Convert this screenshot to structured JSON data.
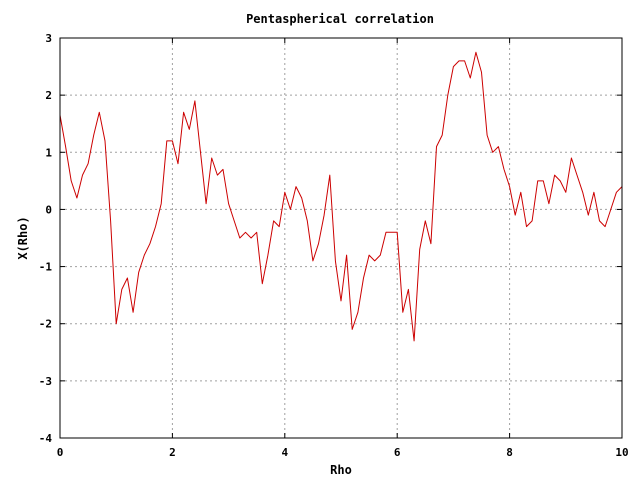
{
  "chart_data": {
    "type": "line",
    "title": "Pentaspherical correlation",
    "xlabel": "Rho",
    "ylabel": "X(Rho)",
    "xlim": [
      0,
      10
    ],
    "ylim": [
      -4,
      3
    ],
    "xticks": [
      0,
      2,
      4,
      6,
      8,
      10
    ],
    "yticks": [
      -4,
      -3,
      -2,
      -1,
      0,
      1,
      2,
      3
    ],
    "grid": true,
    "series": [
      {
        "color": "#cc0000",
        "x": [
          0,
          0.1,
          0.2,
          0.3,
          0.4,
          0.5,
          0.6,
          0.7,
          0.8,
          0.9,
          1.0,
          1.1,
          1.2,
          1.3,
          1.4,
          1.5,
          1.6,
          1.7,
          1.8,
          1.9,
          2.0,
          2.1,
          2.2,
          2.3,
          2.4,
          2.5,
          2.6,
          2.7,
          2.8,
          2.9,
          3.0,
          3.1,
          3.2,
          3.3,
          3.4,
          3.5,
          3.6,
          3.7,
          3.8,
          3.9,
          4.0,
          4.1,
          4.2,
          4.3,
          4.4,
          4.5,
          4.6,
          4.7,
          4.8,
          4.9,
          5.0,
          5.1,
          5.2,
          5.3,
          5.4,
          5.5,
          5.6,
          5.7,
          5.8,
          5.9,
          6.0,
          6.1,
          6.2,
          6.3,
          6.4,
          6.5,
          6.6,
          6.7,
          6.8,
          6.9,
          7.0,
          7.1,
          7.2,
          7.3,
          7.4,
          7.5,
          7.6,
          7.7,
          7.8,
          7.9,
          8.0,
          8.1,
          8.2,
          8.3,
          8.4,
          8.5,
          8.6,
          8.7,
          8.8,
          8.9,
          9.0,
          9.1,
          9.2,
          9.3,
          9.4,
          9.5,
          9.6,
          9.7,
          9.8,
          9.9,
          10.0
        ],
        "y": [
          1.65,
          1.1,
          0.5,
          0.2,
          0.6,
          0.8,
          1.3,
          1.7,
          1.2,
          -0.2,
          -2.0,
          -1.4,
          -1.2,
          -1.8,
          -1.1,
          -0.8,
          -0.6,
          -0.3,
          0.1,
          1.2,
          1.2,
          0.8,
          1.7,
          1.4,
          1.9,
          1.0,
          0.1,
          0.9,
          0.6,
          0.7,
          0.1,
          -0.2,
          -0.5,
          -0.4,
          -0.5,
          -0.4,
          -1.3,
          -0.8,
          -0.2,
          -0.3,
          0.3,
          0.0,
          0.4,
          0.2,
          -0.2,
          -0.9,
          -0.6,
          -0.1,
          0.6,
          -0.9,
          -1.6,
          -0.8,
          -2.1,
          -1.8,
          -1.2,
          -0.8,
          -0.9,
          -0.8,
          -0.4,
          -0.4,
          -0.4,
          -1.8,
          -1.4,
          -2.3,
          -0.7,
          -0.2,
          -0.6,
          1.1,
          1.3,
          2.0,
          2.5,
          2.6,
          2.6,
          2.3,
          2.75,
          2.4,
          1.3,
          1.0,
          1.1,
          0.7,
          0.4,
          -0.1,
          0.3,
          -0.3,
          -0.2,
          0.5,
          0.5,
          0.1,
          0.6,
          0.5,
          0.3,
          0.9,
          0.6,
          0.3,
          -0.1,
          0.3,
          -0.2,
          -0.3,
          0.0,
          0.3,
          0.4
        ],
        "unused": true
      }
    ]
  }
}
